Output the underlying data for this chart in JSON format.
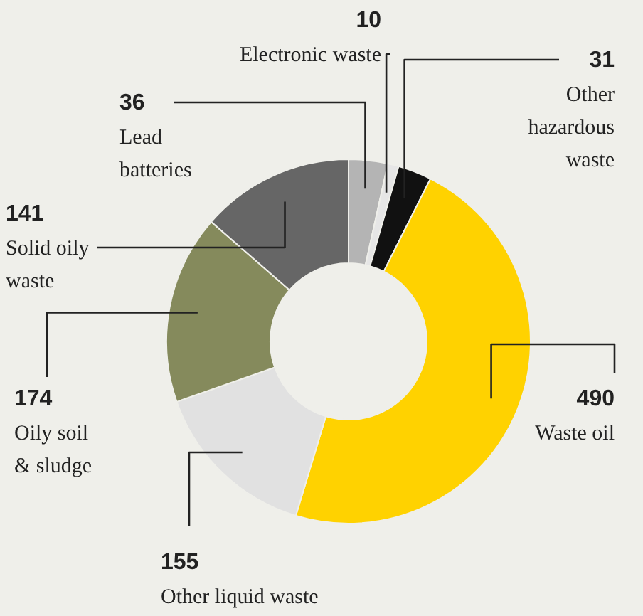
{
  "chart_data": {
    "type": "donut",
    "categories": [
      "Lead batteries",
      "Electronic waste",
      "Other hazardous waste",
      "Waste oil",
      "Other liquid waste",
      "Oily soil & sludge",
      "Solid oily waste"
    ],
    "values": [
      36,
      10,
      31,
      490,
      155,
      174,
      141
    ],
    "colors": [
      "#b4b4b4",
      "#e6e6e6",
      "#111111",
      "#ffd200",
      "#e1e1e1",
      "#858a5c",
      "#666666"
    ],
    "data_labels": true
  }
}
